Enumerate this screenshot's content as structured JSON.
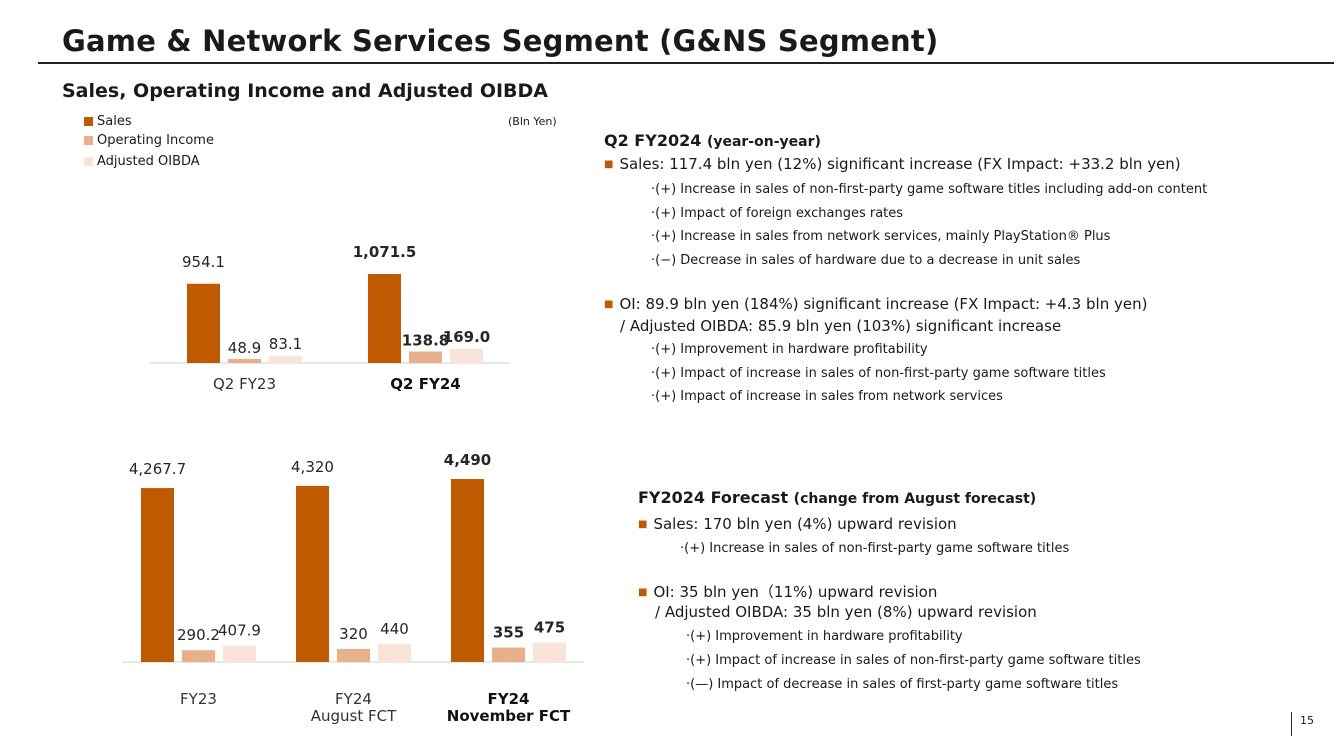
{
  "page": {
    "title": "Game & Network Services Segment (G&NS Segment)",
    "section_title": "Sales, Operating Income and Adjusted OIBDA",
    "unit": "(Bln Yen)",
    "page_number": "15"
  },
  "legend": [
    {
      "label": "Sales",
      "color": "#c05a00"
    },
    {
      "label": "Operating Income",
      "color": "#e8b08a"
    },
    {
      "label": "Adjusted OIBDA",
      "color": "#f8e4d8"
    }
  ],
  "chart_data": [
    {
      "type": "bar",
      "categories": [
        "Q2 FY23",
        "Q2 FY24"
      ],
      "category_labels": [
        [
          "Q2 FY23"
        ],
        [
          "Q2 FY24"
        ]
      ],
      "bold_category": 1,
      "series": [
        {
          "name": "Sales",
          "values": [
            954.1,
            1071.5
          ],
          "labels": [
            "954.1",
            "1,071.5"
          ]
        },
        {
          "name": "Operating Income",
          "values": [
            48.9,
            138.8
          ],
          "labels": [
            "48.9",
            "138.8"
          ]
        },
        {
          "name": "Adjusted OIBDA",
          "values": [
            83.1,
            169.0
          ],
          "labels": [
            "83.1",
            "169.0"
          ]
        }
      ]
    },
    {
      "type": "bar",
      "categories": [
        "FY23",
        "FY24 August FCT",
        "FY24 November FCT"
      ],
      "category_labels": [
        [
          "FY23"
        ],
        [
          "FY24",
          "August FCT"
        ],
        [
          "FY24",
          "November FCT"
        ]
      ],
      "bold_category": 2,
      "series": [
        {
          "name": "Sales",
          "values": [
            4267.7,
            4320,
            4490
          ],
          "labels": [
            "4,267.7",
            "4,320",
            "4,490"
          ]
        },
        {
          "name": "Operating Income",
          "values": [
            290.2,
            320,
            355
          ],
          "labels": [
            "290.2",
            "320",
            "355"
          ]
        },
        {
          "name": "Adjusted OIBDA",
          "values": [
            407.9,
            440,
            475
          ],
          "labels": [
            "407.9",
            "440",
            "475"
          ]
        }
      ]
    }
  ],
  "q2": {
    "heading": "Q2 FY2024",
    "heading_note": "(year-on-year)",
    "sales_line": "Sales: 117.4 bln yen (12%) significant increase (FX Impact: +33.2 bln yen)",
    "sales_points": [
      "·(+) Increase in sales of non-first-party game software titles including add-on content",
      "·(+) Impact of foreign exchanges rates",
      "·(+) Increase in sales from network services, mainly PlayStation® Plus",
      "·(−) Decrease in sales of hardware due to a decrease in unit sales"
    ],
    "oi_line": "OI:  89.9 bln yen (184%) significant increase (FX Impact: +4.3 bln yen)",
    "oibda_line": "/ Adjusted OIBDA: 85.9 bln yen (103%) significant increase",
    "oi_points": [
      "·(+) Improvement in hardware profitability",
      "·(+) Impact of increase in sales of non-first-party game software titles",
      "·(+) Impact of increase in sales from network services"
    ]
  },
  "forecast": {
    "heading": "FY2024 Forecast",
    "heading_note": "(change from August forecast)",
    "sales_line": "Sales: 170 bln yen (4%) upward revision",
    "sales_points": [
      "·(+) Increase in sales of non-first-party game software titles"
    ],
    "oi_line": "OI: 35 bln yen（11%) upward revision",
    "oibda_line": "/ Adjusted OIBDA: 35 bln yen (8%) upward revision",
    "oi_points": [
      "·(+) Improvement in hardware profitability",
      "·(+) Impact of increase in sales of non-first-party game software titles",
      "·(—) Impact of decrease in sales of first-party game software titles"
    ]
  }
}
